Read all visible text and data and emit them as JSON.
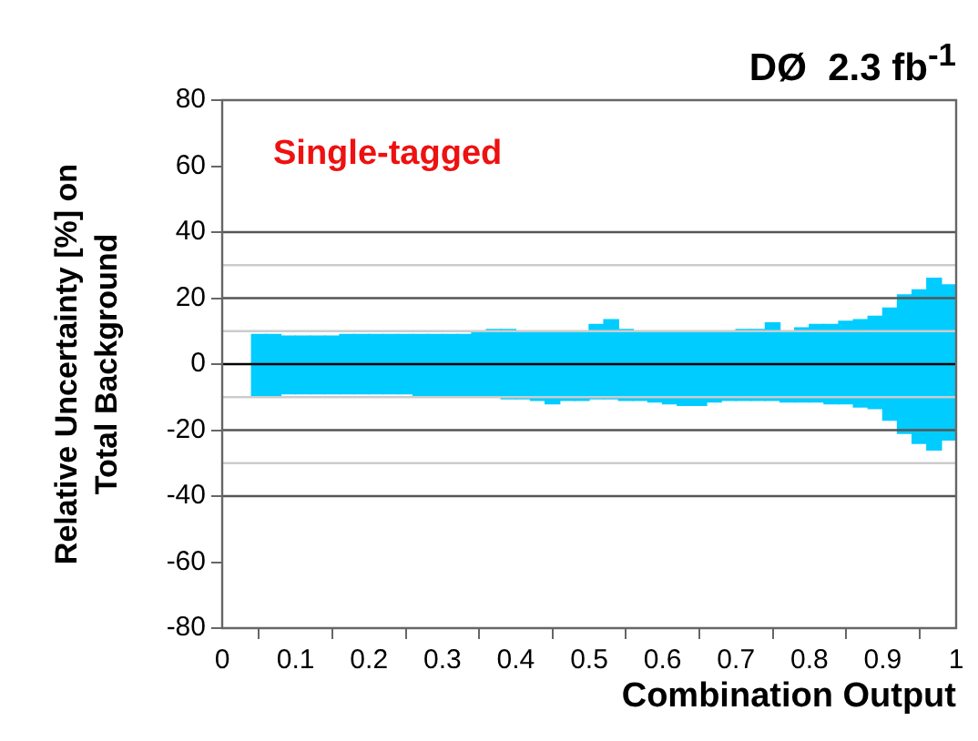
{
  "chart_data": {
    "type": "bar",
    "title": "DØ  2.3 fb$^{-1}$",
    "xlabel": "Combination Output",
    "ylabel": "Relative Uncertainty [%] on Total Background",
    "annotations": [
      "Single-tagged"
    ],
    "x": [
      0.05,
      0.07,
      0.09,
      0.11,
      0.13,
      0.15,
      0.17,
      0.19,
      0.21,
      0.23,
      0.25,
      0.27,
      0.29,
      0.31,
      0.33,
      0.35,
      0.37,
      0.39,
      0.41,
      0.43,
      0.45,
      0.47,
      0.49,
      0.51,
      0.53,
      0.55,
      0.57,
      0.59,
      0.61,
      0.63,
      0.65,
      0.67,
      0.69,
      0.71,
      0.73,
      0.75,
      0.77,
      0.79,
      0.81,
      0.83,
      0.85,
      0.87,
      0.89,
      0.91,
      0.93,
      0.95,
      0.97,
      0.99
    ],
    "series": [
      {
        "color": "#00ccff",
        "values": [
          18.5,
          18.5,
          17.5,
          17.5,
          17.5,
          17.5,
          18,
          18,
          18,
          18,
          18,
          18.5,
          19,
          19,
          19,
          19.5,
          20.5,
          21,
          20.5,
          21,
          21.5,
          21,
          21,
          22.5,
          24,
          21.5,
          21,
          21.5,
          21.5,
          22.5,
          22,
          21.5,
          21,
          21.5,
          21.5,
          23.5,
          21.5,
          22.5,
          23.5,
          24,
          25,
          26.5,
          28,
          34,
          42,
          46.5,
          52,
          47
        ],
        "base": [
          -9.5,
          -9.5,
          -9,
          -9,
          -9,
          -9,
          -9,
          -9,
          -9,
          -9,
          -9,
          -9.5,
          -10,
          -10,
          -10,
          -10,
          -10,
          -10.5,
          -10.5,
          -11,
          -12,
          -11,
          -11,
          -10.5,
          -10.5,
          -11,
          -11,
          -11.5,
          -12,
          -12.5,
          -12.5,
          -11.5,
          -11,
          -11,
          -11,
          -11,
          -11.5,
          -11.5,
          -11.5,
          -12,
          -12,
          -13,
          -13.5,
          -17,
          -21,
          -24,
          -26,
          -23
        ]
      }
    ],
    "xlim": [
      0,
      1
    ],
    "xticks": [
      0,
      0.1,
      0.2,
      0.3,
      0.4,
      0.5,
      0.6,
      0.7,
      0.8,
      0.9,
      1
    ],
    "ylim": [
      -80,
      80
    ],
    "yticks": [
      -80,
      -60,
      -40,
      -20,
      0,
      20,
      40,
      60,
      80
    ],
    "ref_lines": [
      {
        "axis": "y",
        "value": 0,
        "color": "#000000"
      },
      {
        "axis": "y",
        "value": 40,
        "color": "#555555"
      },
      {
        "axis": "y",
        "value": 20,
        "color": "#555555"
      },
      {
        "axis": "y",
        "value": -20,
        "color": "#555555"
      },
      {
        "axis": "y",
        "value": -40,
        "color": "#555555"
      },
      {
        "axis": "y",
        "value": 30,
        "color": "#cccccc"
      },
      {
        "axis": "y",
        "value": 10,
        "color": "#cccccc"
      },
      {
        "axis": "y",
        "value": -10,
        "color": "#cccccc"
      },
      {
        "axis": "y",
        "value": -30,
        "color": "#cccccc"
      }
    ],
    "grid": false,
    "legend": false
  }
}
